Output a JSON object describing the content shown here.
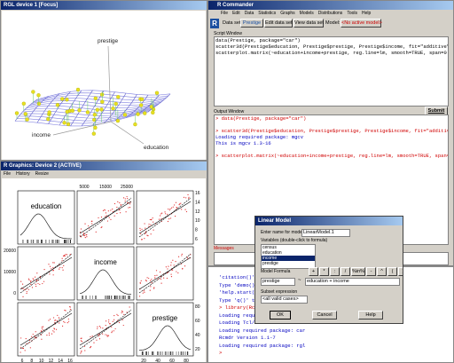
{
  "rgl_window": {
    "title": "RGL device 1 [Focus]",
    "labels": [
      "prestige",
      "income",
      "education"
    ]
  },
  "graphics_window": {
    "title": "R Graphics: Device 2 (ACTIVE)",
    "menu": [
      "File",
      "History",
      "Resize"
    ],
    "variables": [
      "education",
      "income",
      "prestige"
    ],
    "top_ticks": [
      5000,
      15000,
      25000
    ],
    "left_ticks": [
      0,
      10000,
      20000
    ],
    "right_ticks_top": [
      6,
      8,
      10,
      12,
      14,
      16
    ],
    "right_ticks_bottom": [
      20,
      40,
      60,
      80
    ],
    "bottom_ticks_left": [
      6,
      8,
      10,
      12,
      14,
      16
    ],
    "bottom_ticks_right": [
      20,
      40,
      60,
      80
    ]
  },
  "rcmdr": {
    "title": "R Commander",
    "menu": [
      "File",
      "Edit",
      "Data",
      "Statistics",
      "Graphs",
      "Models",
      "Distributions",
      "Tools",
      "Help"
    ],
    "dataset_label": "Data set:",
    "dataset": "Prestige",
    "edit_button": "Edit data set",
    "view_button": "View data set",
    "model_label": "Model:",
    "model": "<No active model>",
    "script_label": "Script Window",
    "script_lines": [
      "data(Prestige, package=\"car\")",
      "scatter3d(Prestige$education, Prestige$prestige, Prestige$income, fit=\"additive\"",
      "scatterplot.matrix(~education+income+prestige, reg.line=lm, smooth=TRUE, span=0."
    ],
    "submit": "Submit",
    "output_label": "Output Window",
    "output_lines": [
      {
        "text": "> data(Prestige, package=\"car\")",
        "kind": "command"
      },
      {
        "text": "> scatter3d(Prestige$education, Prestige$prestige, Prestige$income, fit=\"additiv",
        "kind": "command"
      },
      {
        "text": "Loading required package: mgcv",
        "kind": "output"
      },
      {
        "text": "This is mgcv 1.3-16",
        "kind": "output"
      },
      {
        "text": "> scatterplot.matrix(~education+income+prestige, reg.line=lm, smooth=TRUE, span=",
        "kind": "command"
      }
    ],
    "messages_label": "Messages"
  },
  "console_lines": [
    "'citation()' on how to cite R or R packages in publications.",
    "Type 'demo()' for some demos, 'help()' for on-line help, or",
    "'help.start()' for an HTML browser interface to help.",
    "Type 'q()' to quit R.",
    "> library(Rcmdr)",
    "Loading required package: tcltk",
    "Loading Tcl/Tk interface ... done",
    "Loading required package: car",
    "Rcmdr Version 1.1-7",
    "Loading required package: rgl",
    ">"
  ],
  "dialog": {
    "title": "Linear Model",
    "name_label": "Enter name for model:",
    "name_value": "LinearModel.1",
    "variables_label": "Variables (double-click to formula)",
    "variables": [
      "census",
      "education",
      "income",
      "prestige"
    ],
    "formula_label": "Model Formula",
    "operators": [
      "+",
      "*",
      ":",
      "/",
      "%in%",
      "-",
      "^",
      "(",
      ")"
    ],
    "lhs": "prestige",
    "tilde": "~",
    "rhs": "education + income",
    "subset_label": "Subset expression",
    "subset_value": "<all valid cases>",
    "ok": "OK",
    "cancel": "Cancel",
    "help": "Help"
  }
}
